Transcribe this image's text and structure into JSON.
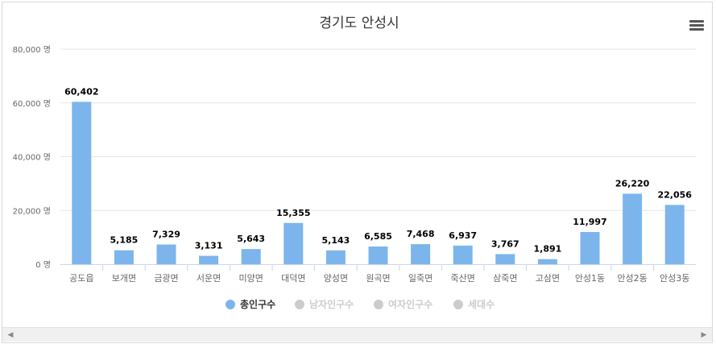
{
  "chart_data": {
    "type": "bar",
    "title": "경기도 안성시",
    "categories": [
      "공도읍",
      "보개면",
      "금광면",
      "서운면",
      "미양면",
      "대덕면",
      "양성면",
      "원곡면",
      "일죽면",
      "죽산면",
      "삼죽면",
      "고삼면",
      "안성1동",
      "안성2동",
      "안성3동"
    ],
    "series": [
      {
        "name": "총인구수",
        "values": [
          60402,
          5185,
          7329,
          3131,
          5643,
          15355,
          5143,
          6585,
          7468,
          6937,
          3767,
          1891,
          11997,
          26220,
          22056
        ],
        "visible": true,
        "color": "#7cb5ec"
      },
      {
        "name": "남자인구수",
        "visible": false,
        "color": "#cccccc"
      },
      {
        "name": "여자인구수",
        "visible": false,
        "color": "#cccccc"
      },
      {
        "name": "세대수",
        "visible": false,
        "color": "#cccccc"
      }
    ],
    "yticks": [
      0,
      20000,
      40000,
      60000,
      80000
    ],
    "ytick_labels": [
      "0 명",
      "20,000 명",
      "40,000 명",
      "60,000 명",
      "80,000 명"
    ],
    "value_labels": [
      "60,402",
      "5,185",
      "7,329",
      "3,131",
      "5,643",
      "15,355",
      "5,143",
      "6,585",
      "7,468",
      "6,937",
      "3,767",
      "1,891",
      "11,997",
      "26,220",
      "22,056"
    ],
    "ylim": [
      0,
      80000
    ],
    "grid": true,
    "legend_position": "bottom-center"
  },
  "icons": {
    "menu": "hamburger-menu-icon",
    "scroll_left": "scroll-left-arrow-icon",
    "scroll_right": "scroll-right-arrow-icon"
  },
  "colors": {
    "bar": "#7cb5ec",
    "legend_hidden": "#cccccc",
    "grid": "#e6e6e6"
  }
}
